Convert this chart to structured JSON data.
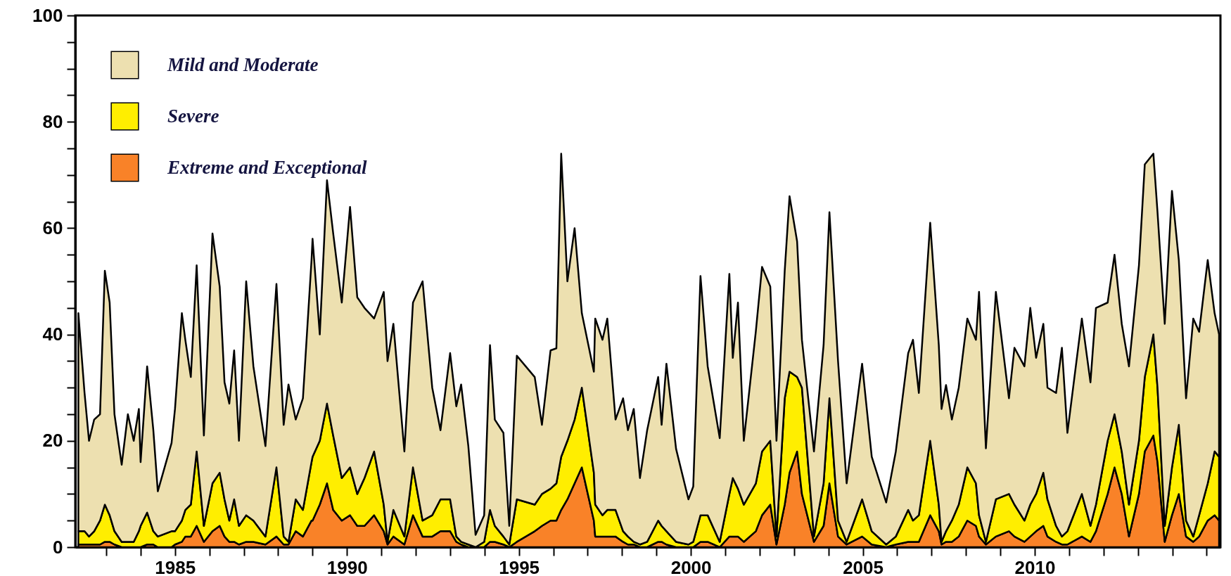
{
  "chart_data": {
    "type": "area",
    "stacked": true,
    "legend": "top left",
    "xlim": [
      1982.1,
      2015.4
    ],
    "ylim": [
      0,
      100
    ],
    "xticks": [
      {
        "value": 1983,
        "label": null
      },
      {
        "value": 1984,
        "label": null
      },
      1985,
      {
        "value": 1986,
        "label": null
      },
      {
        "value": 1987,
        "label": null
      },
      {
        "value": 1988,
        "label": null
      },
      {
        "value": 1989,
        "label": null
      },
      1990,
      {
        "value": 1991,
        "label": null
      },
      {
        "value": 1992,
        "label": null
      },
      {
        "value": 1993,
        "label": null
      },
      {
        "value": 1994,
        "label": null
      },
      1995,
      {
        "value": 1996,
        "label": null
      },
      {
        "value": 1997,
        "label": null
      },
      {
        "value": 1998,
        "label": null
      },
      {
        "value": 1999,
        "label": null
      },
      2000,
      {
        "value": 2001,
        "label": null
      },
      {
        "value": 2002,
        "label": null
      },
      {
        "value": 2003,
        "label": null
      },
      {
        "value": 2004,
        "label": null
      },
      2005,
      {
        "value": 2006,
        "label": null
      },
      {
        "value": 2007,
        "label": null
      },
      {
        "value": 2008,
        "label": null
      },
      {
        "value": 2009,
        "label": null
      },
      2010,
      {
        "value": 2011,
        "label": null
      },
      {
        "value": 2012,
        "label": null
      },
      {
        "value": 2013,
        "label": null
      },
      {
        "value": 2014,
        "label": null
      },
      {
        "value": 2015,
        "label": null
      }
    ],
    "yticks": [
      0,
      {
        "value": 5,
        "label": null
      },
      {
        "value": 10,
        "label": null
      },
      {
        "value": 15,
        "label": null
      },
      20,
      {
        "value": 25,
        "label": null
      },
      {
        "value": 30,
        "label": null
      },
      {
        "value": 35,
        "label": null
      },
      40,
      {
        "value": 45,
        "label": null
      },
      {
        "value": 50,
        "label": null
      },
      {
        "value": 55,
        "label": null
      },
      60,
      {
        "value": 65,
        "label": null
      },
      {
        "value": 70,
        "label": null
      },
      {
        "value": 75,
        "label": null
      },
      80,
      {
        "value": 85,
        "label": null
      },
      {
        "value": 90,
        "label": null
      },
      {
        "value": 95,
        "label": null
      },
      100
    ],
    "x": [
      1982.19,
      1982.37,
      1982.5,
      1982.65,
      1982.82,
      1982.96,
      1983.1,
      1983.24,
      1983.45,
      1983.63,
      1983.8,
      1983.95,
      1984.0,
      1984.19,
      1984.37,
      1984.5,
      1984.9,
      1985.0,
      1985.2,
      1985.3,
      1985.46,
      1985.63,
      1985.84,
      1986.09,
      1986.3,
      1986.44,
      1986.58,
      1986.72,
      1986.86,
      1987.07,
      1987.28,
      1987.63,
      1987.95,
      1988.16,
      1988.3,
      1988.51,
      1988.72,
      1988.97,
      1989.0,
      1989.21,
      1989.42,
      1989.6,
      1989.85,
      1990.09,
      1990.3,
      1990.51,
      1990.79,
      1991.07,
      1991.18,
      1991.35,
      1991.67,
      1991.92,
      1992.2,
      1992.48,
      1992.72,
      1993.0,
      1993.18,
      1993.32,
      1993.53,
      1993.74,
      1993.99,
      1994.16,
      1994.3,
      1994.55,
      1994.72,
      1994.94,
      1995.46,
      1995.67,
      1995.92,
      1996.09,
      1996.23,
      1996.41,
      1996.62,
      1996.83,
      1997.18,
      1997.22,
      1997.43,
      1997.57,
      1997.81,
      1998.03,
      1998.17,
      1998.34,
      1998.52,
      1998.73,
      1999.05,
      1999.15,
      1999.29,
      1999.57,
      1999.93,
      2000.07,
      2000.28,
      2000.49,
      2000.84,
      2001.12,
      2001.22,
      2001.37,
      2001.54,
      2001.89,
      2002.07,
      2002.31,
      2002.49,
      2002.73,
      2002.87,
      2003.09,
      2003.23,
      2003.58,
      2003.86,
      2004.03,
      2004.28,
      2004.53,
      2004.98,
      2005.26,
      2005.68,
      2005.96,
      2006.32,
      2006.46,
      2006.63,
      2006.96,
      2007.21,
      2007.29,
      2007.42,
      2007.59,
      2007.79,
      2008.04,
      2008.29,
      2008.38,
      2008.58,
      2008.87,
      2009.25,
      2009.41,
      2009.7,
      2009.87,
      2010.04,
      2010.25,
      2010.37,
      2010.62,
      2010.79,
      2010.95,
      2011.37,
      2011.62,
      2011.78,
      2012.12,
      2012.32,
      2012.53,
      2012.74,
      2013.03,
      2013.2,
      2013.45,
      2013.57,
      2013.78,
      2013.99,
      2014.19,
      2014.4,
      2014.61,
      2014.78,
      2015.03,
      2015.23,
      2015.36
    ],
    "series": [
      {
        "name": "Extreme and Exceptional",
        "color": "#f98228",
        "values": [
          0.5,
          0.5,
          0.5,
          0.5,
          0.5,
          1,
          1,
          0.5,
          0,
          0,
          0,
          0,
          0,
          0.5,
          0.5,
          0,
          0,
          0.5,
          1,
          2,
          2,
          4,
          1,
          3,
          4,
          2,
          1,
          1,
          0.5,
          1,
          1,
          0.5,
          2,
          0.5,
          0.5,
          3,
          2,
          5,
          5,
          8,
          12,
          7,
          5,
          6,
          4,
          4,
          6,
          3,
          0.5,
          2,
          0.5,
          6,
          2,
          2,
          3,
          3,
          1,
          0.5,
          0,
          0,
          0,
          1,
          1,
          0.5,
          0,
          1,
          3,
          4,
          5,
          5,
          7,
          9,
          12,
          15,
          5,
          2,
          2,
          2,
          2,
          1,
          0.5,
          0.5,
          0,
          0,
          1,
          1,
          0.5,
          0,
          0,
          0,
          1,
          1,
          0,
          2,
          2,
          2,
          1,
          3,
          6,
          8,
          0.5,
          8,
          14,
          18,
          10,
          1,
          4,
          12,
          2,
          0.5,
          2,
          0.5,
          0,
          0.5,
          1,
          1,
          1,
          6,
          3,
          0.5,
          1,
          1,
          2,
          5,
          4,
          2,
          0.5,
          2,
          3,
          2,
          1,
          2,
          3,
          4,
          2,
          1,
          0.5,
          0.5,
          2,
          1,
          3,
          10,
          15,
          10,
          2,
          10,
          18,
          21,
          16,
          1,
          6,
          10,
          2,
          1,
          2,
          5,
          6,
          5
        ]
      },
      {
        "name": "Severe",
        "color": "#ffee00",
        "values": [
          2.5,
          2.5,
          1.5,
          2.5,
          4.5,
          7,
          5,
          2.5,
          1,
          1,
          1,
          3,
          4,
          6,
          2.5,
          2,
          3,
          2.5,
          4,
          5,
          6,
          14,
          3,
          9,
          10,
          7,
          4,
          8,
          3.5,
          5,
          4,
          1.5,
          13,
          1.5,
          0.5,
          6,
          5,
          11,
          12,
          12,
          15,
          14,
          8,
          9,
          6,
          9,
          12,
          5,
          0.5,
          5,
          1.5,
          9,
          3,
          4,
          6,
          6,
          1,
          0.5,
          0.5,
          0,
          1,
          6,
          3,
          1.5,
          0.5,
          8,
          5,
          6,
          6,
          7,
          10,
          11,
          12,
          15,
          9,
          6,
          4,
          5,
          5,
          2,
          1.5,
          0.5,
          0.5,
          1,
          4,
          3,
          2.5,
          1,
          0.5,
          1,
          5,
          5,
          1,
          8,
          11,
          9,
          7,
          9,
          12,
          12,
          1.5,
          20,
          19,
          14,
          20,
          1,
          8,
          16,
          3,
          0.5,
          7,
          2.5,
          0.5,
          1.5,
          6,
          4,
          5,
          14,
          5,
          0.5,
          2,
          4,
          6,
          10,
          8,
          4,
          0.5,
          7,
          7,
          6,
          4,
          6,
          7,
          10,
          7,
          3,
          1.5,
          2.5,
          8,
          3,
          5,
          10,
          10,
          8,
          6,
          10,
          14,
          19,
          14,
          3,
          9,
          13,
          3,
          1,
          4,
          7,
          12,
          12
        ]
      },
      {
        "name": "Mild and Moderate",
        "color": "#ede0b0",
        "values": [
          41,
          26,
          18,
          21,
          20,
          44,
          40,
          22,
          14.5,
          24,
          19,
          23,
          12,
          27.5,
          19,
          8.5,
          16.6,
          23,
          39,
          32,
          24,
          35,
          17,
          47,
          35,
          22,
          22,
          28,
          16,
          44,
          29,
          17,
          34.5,
          21,
          29.6,
          15,
          21,
          38,
          41,
          20,
          42,
          38,
          33,
          49,
          37,
          32,
          25,
          40,
          34,
          35,
          16,
          31,
          45,
          24,
          13,
          27.5,
          24.5,
          29.6,
          18.5,
          2.3,
          5,
          31,
          20,
          19.5,
          3.5,
          27,
          24,
          13,
          26,
          25.4,
          57,
          30,
          36,
          14,
          19,
          35,
          33,
          36,
          17,
          25,
          20,
          25,
          12.5,
          21,
          27,
          19,
          31.5,
          17.5,
          8.5,
          10.4,
          45,
          28,
          19.5,
          41.4,
          22.6,
          35,
          12,
          28.6,
          34.7,
          29,
          18,
          24,
          33,
          25.5,
          9,
          16,
          26,
          35,
          30,
          11,
          25.5,
          14,
          7.9,
          16,
          29.5,
          34,
          23,
          41,
          30,
          25,
          27.5,
          19,
          22,
          28,
          27,
          42,
          17.6,
          39,
          18,
          29.5,
          29,
          37,
          25.6,
          28,
          21,
          25,
          35.5,
          18.5,
          33,
          27,
          37,
          26,
          30,
          24,
          26,
          33,
          40,
          34,
          33,
          38,
          52,
          31,
          23,
          41,
          34.5,
          42,
          26,
          23
        ]
      }
    ]
  }
}
